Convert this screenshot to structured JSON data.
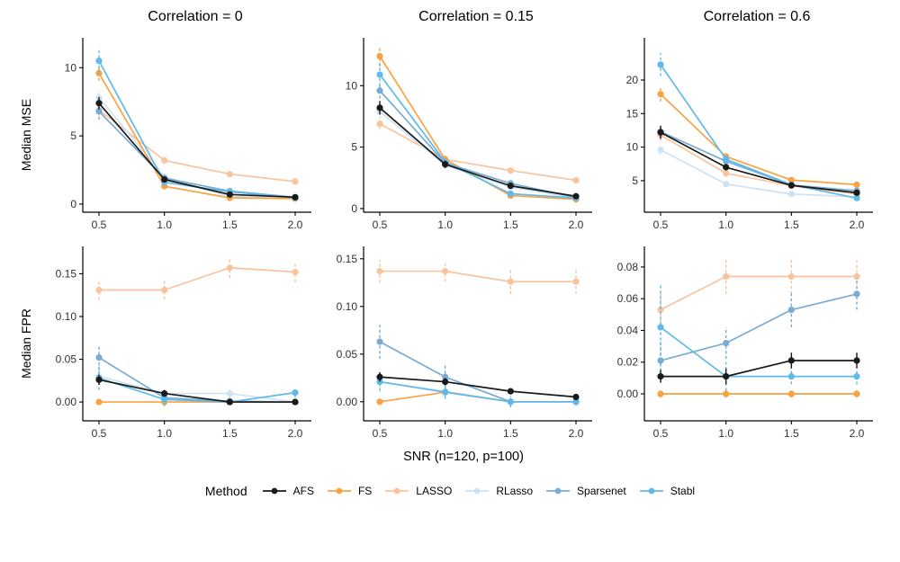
{
  "figure": {
    "x_label": "SNR (n=120, p=100)",
    "row_labels": [
      "Median MSE",
      "Median FPR"
    ],
    "col_titles": [
      "Correlation = 0",
      "Correlation = 0.15",
      "Correlation = 0.6"
    ],
    "legend_title": "Method"
  },
  "chart_data": {
    "type": "line",
    "x": [
      0.5,
      1.0,
      1.5,
      2.0
    ],
    "x_tick_labels": [
      "0.5",
      "1.0",
      "1.5",
      "2.0"
    ],
    "grid": "off",
    "legend_position": "bottom",
    "series_order": [
      "AFS",
      "FS",
      "LASSO",
      "RLasso",
      "Sparsenet",
      "Stabl"
    ],
    "draw_order": [
      "LASSO",
      "RLasso",
      "FS",
      "Sparsenet",
      "Stabl",
      "AFS"
    ],
    "colors": {
      "AFS": "#1A1A1A",
      "FS": "#F9A242",
      "LASSO": "#F9C39E",
      "RLasso": "#CEE2F2",
      "Sparsenet": "#78ACD4",
      "Stabl": "#5FB9E9"
    },
    "panels": [
      {
        "id": "mse-corr-0",
        "row": "Median MSE",
        "col": "Correlation = 0",
        "ylim": [
          -0.6,
          12.2
        ],
        "yticks": [
          0,
          5,
          10
        ],
        "ytick_labels": [
          "0",
          "5",
          "10"
        ],
        "series": {
          "AFS": {
            "values": [
              7.4,
              1.8,
              0.7,
              0.5
            ],
            "errors": [
              0.45,
              0.2,
              0.12,
              0.06
            ]
          },
          "FS": {
            "values": [
              9.6,
              1.3,
              0.45,
              0.4
            ],
            "errors": [
              0.55,
              0.18,
              0.1,
              0.06
            ]
          },
          "LASSO": {
            "values": [
              6.9,
              3.2,
              2.2,
              1.65
            ],
            "errors": [
              0.45,
              0.25,
              0.18,
              0.12
            ]
          },
          "RLasso": {
            "values": [
              7.8,
              2.0,
              0.55,
              0.4
            ],
            "errors": [
              0.6,
              0.25,
              0.1,
              0.06
            ]
          },
          "Sparsenet": {
            "values": [
              6.8,
              1.9,
              0.95,
              0.5
            ],
            "errors": [
              0.6,
              0.25,
              0.15,
              0.08
            ]
          },
          "Stabl": {
            "values": [
              10.5,
              1.6,
              0.9,
              0.45
            ],
            "errors": [
              0.95,
              0.3,
              0.15,
              0.08
            ]
          }
        }
      },
      {
        "id": "mse-corr-0.15",
        "row": "Median MSE",
        "col": "Correlation = 0.15",
        "ylim": [
          -0.3,
          13.9
        ],
        "yticks": [
          0,
          5,
          10
        ],
        "ytick_labels": [
          "0",
          "5",
          "10"
        ],
        "series": {
          "AFS": {
            "values": [
              8.2,
              3.6,
              1.85,
              1.0
            ],
            "errors": [
              0.55,
              0.3,
              0.18,
              0.1
            ]
          },
          "FS": {
            "values": [
              12.4,
              4.0,
              1.05,
              0.75
            ],
            "errors": [
              0.85,
              0.3,
              0.15,
              0.1
            ]
          },
          "LASSO": {
            "values": [
              6.9,
              4.0,
              3.1,
              2.3
            ],
            "errors": [
              0.45,
              0.3,
              0.22,
              0.16
            ]
          },
          "RLasso": {
            "values": [
              7.9,
              3.5,
              1.75,
              0.85
            ],
            "errors": [
              0.6,
              0.3,
              0.2,
              0.1
            ]
          },
          "Sparsenet": {
            "values": [
              9.6,
              3.7,
              2.05,
              0.9
            ],
            "errors": [
              0.65,
              0.35,
              0.25,
              0.12
            ]
          },
          "Stabl": {
            "values": [
              10.9,
              3.8,
              1.2,
              0.85
            ],
            "errors": [
              0.95,
              0.4,
              0.2,
              0.1
            ]
          }
        }
      },
      {
        "id": "mse-corr-0.6",
        "row": "Median MSE",
        "col": "Correlation = 0.6",
        "ylim": [
          0.3,
          26.3
        ],
        "yticks": [
          5,
          10,
          15,
          20
        ],
        "ytick_labels": [
          "5",
          "10",
          "15",
          "20"
        ],
        "series": {
          "AFS": {
            "values": [
              12.2,
              7.0,
              4.3,
              3.2
            ],
            "errors": [
              0.95,
              0.45,
              0.3,
              0.25
            ]
          },
          "FS": {
            "values": [
              17.9,
              8.6,
              5.1,
              4.4
            ],
            "errors": [
              1.1,
              0.5,
              0.35,
              0.3
            ]
          },
          "LASSO": {
            "values": [
              11.8,
              6.1,
              4.25,
              3.0
            ],
            "errors": [
              0.85,
              0.45,
              0.3,
              0.25
            ]
          },
          "RLasso": {
            "values": [
              9.6,
              4.5,
              3.0,
              2.6
            ],
            "errors": [
              0.8,
              0.35,
              0.25,
              0.2
            ]
          },
          "Sparsenet": {
            "values": [
              12.3,
              7.9,
              4.35,
              3.5
            ],
            "errors": [
              0.95,
              0.55,
              0.35,
              0.3
            ]
          },
          "Stabl": {
            "values": [
              22.3,
              8.2,
              4.4,
              2.4
            ],
            "errors": [
              1.7,
              0.6,
              0.4,
              0.25
            ]
          }
        }
      },
      {
        "id": "fpr-corr-0",
        "row": "Median FPR",
        "col": "Correlation = 0",
        "ylim": [
          -0.022,
          0.182
        ],
        "yticks": [
          0.0,
          0.05,
          0.1,
          0.15
        ],
        "ytick_labels": [
          "0.00",
          "0.05",
          "0.10",
          "0.15"
        ],
        "series": {
          "AFS": {
            "values": [
              0.026,
              0.01,
              0.0,
              0.0
            ],
            "errors": [
              0.006,
              0.004,
              0.002,
              0.001
            ]
          },
          "FS": {
            "values": [
              0.0,
              0.0,
              0.0,
              0.0
            ],
            "errors": [
              0.001,
              0.001,
              0.001,
              0.001
            ]
          },
          "LASSO": {
            "values": [
              0.131,
              0.131,
              0.157,
              0.152
            ],
            "errors": [
              0.012,
              0.011,
              0.012,
              0.012
            ]
          },
          "RLasso": {
            "values": [
              0.03,
              0.01,
              0.01,
              0.0
            ],
            "errors": [
              0.009,
              0.005,
              0.005,
              0.003
            ]
          },
          "Sparsenet": {
            "values": [
              0.052,
              0.005,
              0.001,
              0.0
            ],
            "errors": [
              0.015,
              0.008,
              0.004,
              0.003
            ]
          },
          "Stabl": {
            "values": [
              0.028,
              0.003,
              0.0,
              0.011
            ],
            "errors": [
              0.014,
              0.008,
              0.003,
              0.006
            ]
          }
        }
      },
      {
        "id": "fpr-corr-0.15",
        "row": "Median FPR",
        "col": "Correlation = 0.15",
        "ylim": [
          -0.02,
          0.163
        ],
        "yticks": [
          0.0,
          0.05,
          0.1,
          0.15
        ],
        "ytick_labels": [
          "0.00",
          "0.05",
          "0.10",
          "0.15"
        ],
        "series": {
          "AFS": {
            "values": [
              0.026,
              0.021,
              0.011,
              0.005
            ],
            "errors": [
              0.005,
              0.004,
              0.003,
              0.002
            ]
          },
          "FS": {
            "values": [
              0.0,
              0.01,
              0.0,
              0.0
            ],
            "errors": [
              0.001,
              0.004,
              0.001,
              0.001
            ]
          },
          "LASSO": {
            "values": [
              0.137,
              0.137,
              0.126,
              0.126
            ],
            "errors": [
              0.012,
              0.011,
              0.013,
              0.013
            ]
          },
          "RLasso": {
            "values": [
              0.021,
              0.011,
              0.0,
              0.0
            ],
            "errors": [
              0.008,
              0.005,
              0.003,
              0.002
            ]
          },
          "Sparsenet": {
            "values": [
              0.063,
              0.026,
              0.0,
              0.0
            ],
            "errors": [
              0.018,
              0.013,
              0.006,
              0.004
            ]
          },
          "Stabl": {
            "values": [
              0.021,
              0.01,
              0.0,
              0.0
            ],
            "errors": [
              0.01,
              0.007,
              0.004,
              0.003
            ]
          }
        }
      },
      {
        "id": "fpr-corr-0.6",
        "row": "Median FPR",
        "col": "Correlation = 0.6",
        "ylim": [
          -0.017,
          0.093
        ],
        "yticks": [
          0.0,
          0.02,
          0.04,
          0.06,
          0.08
        ],
        "ytick_labels": [
          "0.00",
          "0.02",
          "0.04",
          "0.06",
          "0.08"
        ],
        "series": {
          "AFS": {
            "values": [
              0.011,
              0.011,
              0.021,
              0.021
            ],
            "errors": [
              0.004,
              0.005,
              0.005,
              0.005
            ]
          },
          "FS": {
            "values": [
              0.0,
              0.0,
              0.0,
              0.0
            ],
            "errors": [
              0.002,
              0.002,
              0.002,
              0.002
            ]
          },
          "LASSO": {
            "values": [
              0.053,
              0.074,
              0.074,
              0.074
            ],
            "errors": [
              0.011,
              0.011,
              0.011,
              0.011
            ]
          },
          "RLasso": {
            "values": [
              0.0,
              0.0,
              0.0,
              0.0
            ],
            "errors": [
              0.003,
              0.003,
              0.003,
              0.003
            ]
          },
          "Sparsenet": {
            "values": [
              0.021,
              0.032,
              0.053,
              0.063
            ],
            "errors": [
              0.013,
              0.01,
              0.011,
              0.01
            ]
          },
          "Stabl": {
            "values": [
              0.042,
              0.011,
              0.011,
              0.011
            ],
            "errors": [
              0.028,
              0.009,
              0.005,
              0.005
            ]
          }
        }
      }
    ]
  }
}
